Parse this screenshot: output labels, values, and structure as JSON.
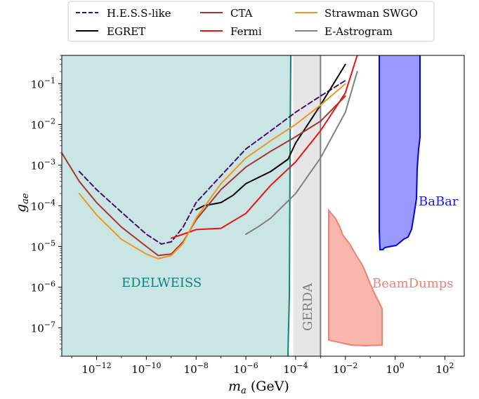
{
  "chart_data": {
    "type": "line",
    "xlabel": "m_a (GeV)",
    "ylabel": "g_ae",
    "xscale": "log",
    "yscale": "log",
    "xlim": [
      4e-14,
      600
    ],
    "ylim": [
      2e-08,
      0.5
    ],
    "x_ticks": [
      {
        "value": 1e-12,
        "label": "10",
        "exp": "−12"
      },
      {
        "value": 1e-10,
        "label": "10",
        "exp": "−10"
      },
      {
        "value": 1e-08,
        "label": "10",
        "exp": "−8"
      },
      {
        "value": 1e-06,
        "label": "10",
        "exp": "−6"
      },
      {
        "value": 0.0001,
        "label": "10",
        "exp": "−4"
      },
      {
        "value": 0.01,
        "label": "10",
        "exp": "−2"
      },
      {
        "value": 1,
        "label": "10",
        "exp": "0"
      },
      {
        "value": 100,
        "label": "10",
        "exp": "2"
      }
    ],
    "y_ticks": [
      {
        "value": 1e-07,
        "label": "10",
        "exp": "−7"
      },
      {
        "value": 1e-06,
        "label": "10",
        "exp": "−6"
      },
      {
        "value": 1e-05,
        "label": "10",
        "exp": "−5"
      },
      {
        "value": 0.0001,
        "label": "10",
        "exp": "−4"
      },
      {
        "value": 0.001,
        "label": "10",
        "exp": "−3"
      },
      {
        "value": 0.01,
        "label": "10",
        "exp": "−2"
      },
      {
        "value": 0.1,
        "label": "10",
        "exp": "−1"
      }
    ],
    "legend": {
      "placement": "top, outside plot, 3 columns"
    },
    "series": [
      {
        "name": "H.E.S.S-like",
        "color": "#4b0a6e",
        "dash": "dashed",
        "x": [
          2e-13,
          1e-12,
          1e-11,
          1e-10,
          4e-10,
          1e-09,
          3e-09,
          1e-08,
          1e-07,
          1e-06,
          1e-05,
          0.0001,
          0.001,
          0.01
        ],
        "y": [
          0.0007,
          0.00025,
          7e-05,
          2e-05,
          1.15e-05,
          1.3e-05,
          3e-05,
          0.00012,
          0.00055,
          0.0025,
          0.007,
          0.02,
          0.05,
          0.12
        ]
      },
      {
        "name": "EGRET",
        "color": "#000000",
        "dash": "solid",
        "x": [
          1e-08,
          2e-08,
          1e-07,
          3e-07,
          1e-06,
          1e-05,
          5e-05,
          0.0001,
          0.001,
          0.01
        ],
        "y": [
          8e-05,
          0.0001,
          0.00012,
          0.00018,
          0.00035,
          0.0007,
          0.0014,
          0.0035,
          0.03,
          0.3
        ]
      },
      {
        "name": "CTA",
        "color": "#a53434",
        "dash": "solid",
        "x": [
          4e-14,
          2e-13,
          1e-12,
          1e-11,
          1e-10,
          3e-10,
          1e-09,
          3e-09,
          1e-08,
          1e-07,
          1e-06,
          1e-05,
          0.0001,
          0.001,
          0.01
        ],
        "y": [
          0.002,
          0.0004,
          0.00012,
          3e-05,
          1e-05,
          6e-06,
          6.5e-06,
          1.3e-05,
          4.5e-05,
          0.00025,
          0.0009,
          0.0022,
          0.005,
          0.012,
          0.05
        ]
      },
      {
        "name": "Fermi",
        "color": "#ee1111",
        "dash": "solid",
        "x": [
          1e-09,
          3e-09,
          1e-08,
          1e-07,
          1e-06,
          1e-05,
          0.0001,
          0.001,
          0.01,
          0.03
        ],
        "y": [
          1.6e-05,
          2e-05,
          2.6e-05,
          2.8e-05,
          6.5e-05,
          0.00032,
          0.0012,
          0.007,
          0.06,
          0.5
        ]
      },
      {
        "name": "Strawman SWGO",
        "color": "#f0961e",
        "dash": "solid",
        "x": [
          2e-13,
          1e-12,
          1e-11,
          1e-10,
          3e-10,
          1e-09,
          3e-09,
          1e-08,
          1e-07,
          1e-06,
          1e-05,
          0.0001,
          0.001,
          0.01
        ],
        "y": [
          0.0002,
          6e-05,
          1.5e-05,
          6.5e-06,
          5e-06,
          6e-06,
          1.2e-05,
          5e-05,
          0.00035,
          0.0015,
          0.004,
          0.01,
          0.03,
          0.1
        ]
      },
      {
        "name": "E-Astrogram",
        "color": "#808080",
        "dash": "solid",
        "x": [
          1e-06,
          3e-06,
          1e-05,
          0.0001,
          0.001,
          0.01,
          0.03
        ],
        "y": [
          2e-05,
          3e-05,
          5e-05,
          0.0002,
          0.0015,
          0.02,
          0.2
        ]
      }
    ],
    "regions": [
      {
        "name": "EDELWEISS",
        "label": "EDELWEISS",
        "fill": "#c9e6e4",
        "edge": "#138080",
        "text_color": "#138080"
      },
      {
        "name": "GERDA",
        "label": "GERDA",
        "fill": "#e6e6e6",
        "edge": "#808080",
        "text_color": "#808080",
        "x_range": [
          8e-05,
          0.001
        ]
      },
      {
        "name": "BaBar",
        "label": "BaBar",
        "fill": "#9999ff",
        "edge": "#0000ee",
        "text_color": "#1a1aee"
      },
      {
        "name": "BeamDumps",
        "label": "BeamDumps",
        "fill": "#f8b6ad",
        "edge": "#f08070",
        "text_color": "#f08070"
      }
    ]
  }
}
